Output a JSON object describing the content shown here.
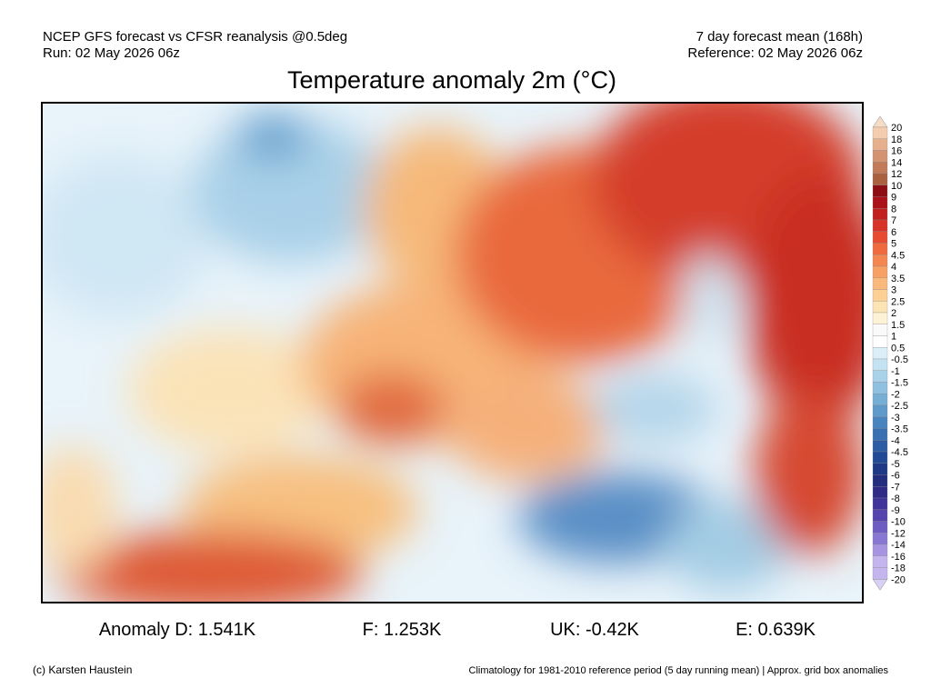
{
  "header": {
    "left": [
      "NCEP GFS forecast vs CFSR reanalysis @0.5deg",
      "Run: 02 May 2026 06z"
    ],
    "right": [
      "7 day forecast mean (168h)",
      "Reference: 02 May 2026 06z"
    ]
  },
  "title": "Temperature anomaly 2m (°C)",
  "colorbar": {
    "labels": [
      "20",
      "18",
      "16",
      "14",
      "12",
      "10",
      "9",
      "8",
      "7",
      "6",
      "5",
      "4.5",
      "4",
      "3.5",
      "3",
      "2.5",
      "2",
      "1.5",
      "1",
      "0.5",
      "-0.5",
      "-1",
      "-1.5",
      "-2",
      "-2.5",
      "-3",
      "-3.5",
      "-4",
      "-4.5",
      "-5",
      "-6",
      "-7",
      "-8",
      "-9",
      "-10",
      "-12",
      "-14",
      "-16",
      "-18",
      "-20"
    ]
  },
  "stats": [
    "Anomaly D: 1.541K",
    "F: 1.253K",
    "UK: -0.42K",
    "E: 0.639K"
  ],
  "footer": {
    "credit": "(c) Karsten Haustein",
    "note": "Climatology for 1981-2010 reference period (5 day running mean) | Approx. grid box anomalies"
  }
}
